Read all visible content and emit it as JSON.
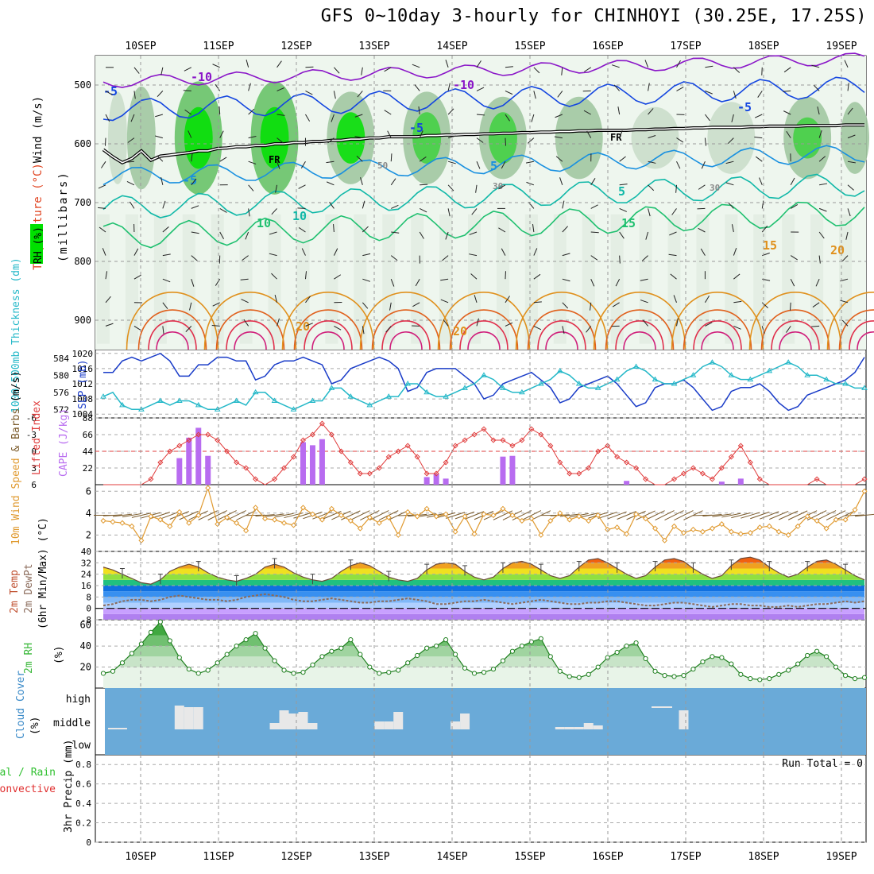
{
  "title": "GFS 0~10day 3-hourly for CHINHOYI (30.25E, 17.25S)",
  "date_labels": [
    "10SEP",
    "11SEP",
    "12SEP",
    "13SEP",
    "14SEP",
    "15SEP",
    "16SEP",
    "17SEP",
    "18SEP",
    "19SEP"
  ],
  "colors": {
    "temp_line_cold": "#8a16c8",
    "temp_line_blue": "#1446e0",
    "temp_line_cyan": "#1890e0",
    "temp_line_teal": "#10b8a8",
    "temp_line_green": "#20c070",
    "temp_line_orange": "#e0901c",
    "temp_line_red": "#e0304c",
    "rh_green": "#00e000",
    "slp_line": "#1a3cc8",
    "thickness_line": "#24b8c8",
    "cape_bar": "#b86cf0",
    "lifted_index": "#e03c3c",
    "wind_speed": "#e09a30",
    "rh2m": "#3ab83a",
    "cloud_bg": "#6aaad8",
    "cloud_bar": "#e8e8e8"
  },
  "chart_data": [
    {
      "id": "upper_air",
      "type": "heatmap",
      "axis_label_parts": [
        "RH (%)",
        "Temperature",
        " (°C)",
        "Wind",
        " (m/s)"
      ],
      "ylabel": "(millibars)",
      "y_ticks": [
        500,
        600,
        700,
        800,
        900
      ],
      "ylim": [
        950,
        450
      ],
      "freezing_level_label": "FR",
      "contour_labels": [
        "-10",
        "-10",
        "-5",
        "-5",
        "-5",
        "-5",
        "5",
        "5",
        "10",
        "10",
        "15",
        "15",
        "20",
        "20",
        "20",
        "50",
        "30",
        "30"
      ],
      "freezing_level_mb": [
        610,
        622,
        632,
        625,
        612,
        628,
        621,
        619,
        617,
        615,
        612,
        612,
        608,
        607,
        605,
        605,
        603,
        603,
        600,
        600,
        598,
        598,
        596,
        596,
        594,
        594,
        592,
        592,
        590,
        590,
        588,
        588,
        588,
        588,
        586,
        586,
        585,
        585,
        584,
        584,
        583,
        583,
        582,
        582,
        581,
        581,
        580,
        580,
        579,
        579,
        578,
        578,
        577,
        577,
        577,
        577,
        576,
        576,
        575,
        575,
        574,
        574,
        573,
        573,
        572,
        572,
        572,
        572,
        571,
        571,
        570,
        570,
        570,
        570,
        569,
        569,
        569,
        569,
        568,
        568,
        568
      ]
    },
    {
      "id": "slp_thickness",
      "type": "line",
      "y_left_label": "1000-500mb Thickness (dm)",
      "y_left_ticks": [
        572,
        576,
        580,
        584
      ],
      "y_left_lim": [
        570,
        586
      ],
      "y_right_label": "SLP (mb)",
      "y_right_ticks": [
        1004,
        1008,
        1012,
        1016,
        1020
      ],
      "y_right_lim": [
        1003,
        1021
      ],
      "series": [
        {
          "name": "SLP",
          "axis": "right",
          "values": [
            1015,
            1015,
            1018,
            1019,
            1018,
            1019,
            1020,
            1018,
            1014,
            1014,
            1017,
            1017,
            1019,
            1019,
            1018,
            1018,
            1013,
            1014,
            1017,
            1018,
            1018,
            1019,
            1018,
            1017,
            1012,
            1013,
            1016,
            1017,
            1018,
            1019,
            1018,
            1016,
            1010,
            1011,
            1015,
            1016,
            1016,
            1016,
            1014,
            1012,
            1008,
            1009,
            1012,
            1013,
            1014,
            1015,
            1013,
            1011,
            1007,
            1008,
            1011,
            1012,
            1013,
            1014,
            1012,
            1009,
            1006,
            1007,
            1011,
            1012,
            1012,
            1013,
            1011,
            1008,
            1005,
            1006,
            1010,
            1011,
            1011,
            1012,
            1010,
            1007,
            1005,
            1006,
            1009,
            1010,
            1011,
            1012,
            1013,
            1015,
            1019
          ]
        },
        {
          "name": "Thickness",
          "axis": "left",
          "values": [
            575,
            576,
            573,
            572,
            572,
            573,
            574,
            573,
            574,
            574,
            573,
            572,
            572,
            573,
            574,
            573,
            576,
            576,
            574,
            573,
            572,
            573,
            574,
            574,
            577,
            577,
            575,
            574,
            573,
            574,
            575,
            575,
            578,
            578,
            576,
            575,
            575,
            576,
            577,
            578,
            580,
            579,
            577,
            576,
            576,
            577,
            578,
            579,
            581,
            580,
            578,
            577,
            577,
            578,
            579,
            581,
            582,
            581,
            579,
            578,
            578,
            579,
            580,
            582,
            583,
            582,
            580,
            579,
            579,
            580,
            581,
            582,
            583,
            582,
            580,
            580,
            579,
            578,
            578,
            577,
            577
          ]
        }
      ]
    },
    {
      "id": "cape_li",
      "type": "bar",
      "y_left_label": "Lifted Index",
      "y_left_ticks": [
        -6,
        -3,
        0,
        3,
        6
      ],
      "y_left_lim": [
        6,
        -6
      ],
      "y_right_label": "CAPE (J/kg)",
      "y_right_ticks": [
        22,
        44,
        66,
        88
      ],
      "y_right_lim": [
        0,
        88
      ],
      "reference_line_li": 0,
      "series": [
        {
          "name": "CAPE",
          "values": [
            0,
            0,
            0,
            0,
            0,
            0,
            0,
            0,
            35,
            62,
            75,
            38,
            0,
            0,
            0,
            0,
            0,
            0,
            0,
            0,
            0,
            56,
            52,
            60,
            0,
            0,
            0,
            0,
            0,
            0,
            0,
            0,
            0,
            0,
            10,
            14,
            8,
            0,
            0,
            0,
            0,
            0,
            37,
            38,
            0,
            0,
            0,
            0,
            0,
            0,
            0,
            0,
            0,
            0,
            0,
            5,
            0,
            0,
            0,
            0,
            0,
            0,
            0,
            0,
            0,
            4,
            0,
            8,
            0,
            0,
            0,
            0,
            0,
            0,
            0,
            0,
            0,
            0,
            0,
            0,
            0
          ]
        },
        {
          "name": "Lifted Index",
          "values": [
            6,
            6,
            6,
            6,
            6,
            5,
            2,
            0,
            -1,
            -2,
            -3,
            -3,
            -2,
            0,
            2,
            3,
            5,
            6,
            5,
            3,
            1,
            -2,
            -3,
            -5,
            -3,
            0,
            2,
            4,
            4,
            3,
            1,
            0,
            -1,
            1,
            4,
            4,
            2,
            -1,
            -2,
            -3,
            -4,
            -2,
            -2,
            -1,
            -2,
            -4,
            -3,
            -1,
            2,
            4,
            4,
            3,
            0,
            -1,
            1,
            2,
            3,
            5,
            6,
            6,
            5,
            4,
            3,
            4,
            5,
            3,
            1,
            -1,
            2,
            5,
            6,
            6,
            6,
            6,
            6,
            5,
            6,
            6,
            6,
            6,
            5
          ]
        }
      ]
    },
    {
      "id": "wind10m",
      "type": "line",
      "ylabel": "10m Wind Speed & Barbs (m/s)",
      "y_ticks": [
        2,
        4,
        6
      ],
      "ylim": [
        0.5,
        6.6
      ],
      "series": [
        {
          "name": "10m Wind Speed",
          "values": [
            3.3,
            3.2,
            3.1,
            2.8,
            1.5,
            3.7,
            3.4,
            2.8,
            4.1,
            3.1,
            3.8,
            6.3,
            3.0,
            3.6,
            3.1,
            2.4,
            4.5,
            3.5,
            3.4,
            3.1,
            2.9,
            4.5,
            3.9,
            3.4,
            4.4,
            3.8,
            3.3,
            2.6,
            3.6,
            3.1,
            3.6,
            2.0,
            4.1,
            3.7,
            4.4,
            3.7,
            3.9,
            2.3,
            3.7,
            2.1,
            3.9,
            3.8,
            4.4,
            3.8,
            3.3,
            3.5,
            2.0,
            3.3,
            4.0,
            3.4,
            3.7,
            3.3,
            3.8,
            2.5,
            2.7,
            2.1,
            3.9,
            3.5,
            2.6,
            1.5,
            2.8,
            2.2,
            2.5,
            2.3,
            2.6,
            3.0,
            2.3,
            2.1,
            2.2,
            2.7,
            2.8,
            2.3,
            2.0,
            2.8,
            3.7,
            3.3,
            2.6,
            3.4,
            3.4,
            4.3,
            6.0
          ]
        }
      ]
    },
    {
      "id": "temp2m",
      "type": "area",
      "ylabel": "2m Temp 2m DewPt (6hr Min/Max) (°C)",
      "y_ticks": [
        -8,
        0,
        8,
        16,
        24,
        32,
        40
      ],
      "ylim": [
        -8,
        40
      ],
      "series": [
        {
          "name": "2m Temp",
          "values": [
            29,
            27,
            24,
            21,
            18,
            17,
            20,
            26,
            29,
            31,
            29,
            25,
            22,
            20,
            19,
            21,
            24,
            29,
            31,
            29,
            25,
            22,
            20,
            19,
            21,
            26,
            30,
            32,
            30,
            26,
            22,
            20,
            19,
            21,
            27,
            31,
            32,
            31,
            26,
            22,
            20,
            22,
            28,
            32,
            33,
            31,
            27,
            23,
            21,
            23,
            29,
            34,
            35,
            32,
            28,
            24,
            21,
            23,
            29,
            34,
            35,
            33,
            28,
            24,
            21,
            23,
            30,
            35,
            36,
            34,
            29,
            25,
            22,
            24,
            29,
            33,
            34,
            31,
            27,
            23,
            20
          ]
        },
        {
          "name": "2m DewPt",
          "values": [
            2,
            3,
            5,
            6,
            6,
            5,
            6,
            8,
            9,
            8,
            7,
            6,
            6,
            5,
            6,
            8,
            9,
            10,
            9,
            8,
            6,
            5,
            5,
            6,
            7,
            6,
            5,
            4,
            4,
            5,
            5,
            6,
            7,
            6,
            5,
            3,
            3,
            4,
            5,
            5,
            6,
            5,
            4,
            3,
            4,
            5,
            6,
            5,
            4,
            3,
            3,
            4,
            4,
            5,
            5,
            4,
            3,
            2,
            2,
            3,
            4,
            4,
            3,
            2,
            1,
            2,
            3,
            3,
            2,
            2,
            1,
            1,
            2,
            1,
            2,
            3,
            3,
            4,
            5,
            4,
            5
          ]
        }
      ]
    },
    {
      "id": "rh2m",
      "type": "area",
      "ylabel": "2m RH (%)",
      "y_ticks": [
        20,
        40,
        60
      ],
      "ylim": [
        0,
        65
      ],
      "series": [
        {
          "name": "2m RH",
          "values": [
            14,
            16,
            24,
            33,
            42,
            53,
            63,
            45,
            29,
            18,
            14,
            17,
            24,
            32,
            40,
            46,
            52,
            38,
            26,
            17,
            14,
            15,
            22,
            30,
            35,
            38,
            46,
            32,
            20,
            14,
            15,
            17,
            24,
            31,
            38,
            40,
            46,
            32,
            19,
            14,
            15,
            18,
            26,
            35,
            40,
            44,
            47,
            30,
            16,
            11,
            10,
            13,
            20,
            29,
            34,
            40,
            43,
            28,
            16,
            12,
            11,
            12,
            18,
            25,
            30,
            29,
            23,
            13,
            9,
            8,
            9,
            13,
            17,
            23,
            31,
            35,
            30,
            20,
            12,
            9,
            10
          ]
        }
      ]
    },
    {
      "id": "cloud",
      "type": "bar",
      "ylabel": "Cloud Cover (%)",
      "y_ticks": [
        "high",
        "middle",
        "low"
      ],
      "series": [
        {
          "name": "Cloud Cover",
          "values": [
            0,
            2,
            2,
            0,
            0,
            0,
            0,
            0,
            30,
            28,
            28,
            0,
            0,
            0,
            0,
            0,
            0,
            0,
            8,
            24,
            20,
            22,
            8,
            0,
            0,
            0,
            0,
            0,
            0,
            10,
            10,
            22,
            0,
            0,
            0,
            0,
            0,
            10,
            20,
            0,
            0,
            0,
            0,
            0,
            0,
            0,
            0,
            0,
            3,
            3,
            3,
            8,
            5,
            0,
            0,
            0,
            0,
            0,
            0,
            0,
            0,
            24,
            0,
            0,
            0,
            0,
            0,
            0,
            0,
            0,
            0,
            0,
            0,
            0,
            0,
            0,
            0,
            0,
            0,
            0,
            0
          ]
        }
      ]
    },
    {
      "id": "precip",
      "type": "bar",
      "ylabel_parts": [
        "Total / Rain",
        "Convective",
        "3hr Precip (mm)"
      ],
      "y_ticks": [
        0,
        0.2,
        0.4,
        0.6,
        0.8
      ],
      "ylim": [
        0,
        0.9
      ],
      "run_total_label": "Run Total = 0",
      "series": [
        {
          "name": "Total / Rain",
          "values": []
        },
        {
          "name": "Convective",
          "values": []
        }
      ]
    }
  ]
}
